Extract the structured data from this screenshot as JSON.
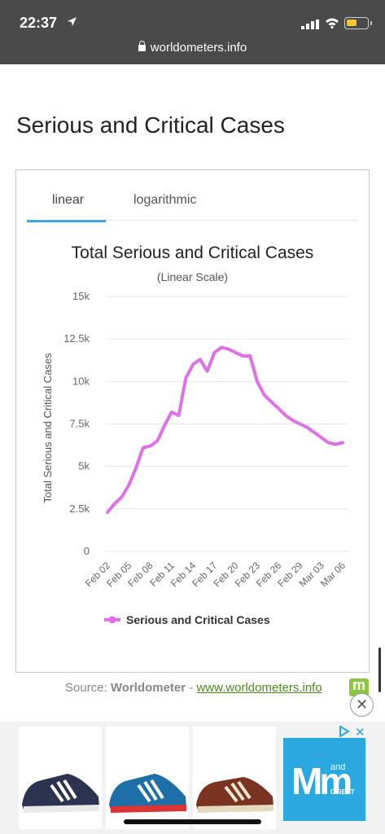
{
  "status_bar": {
    "time": "22:37",
    "url": "worldometers.info"
  },
  "section_title": "Serious and Critical Cases",
  "tabs": [
    {
      "label": "linear",
      "active": true
    },
    {
      "label": "logarithmic",
      "active": false
    }
  ],
  "chart_data": {
    "type": "line",
    "title": "Total Serious and Critical Cases",
    "subtitle": "(Linear Scale)",
    "ylabel": "Total Serious and Critical Cases",
    "xlabel": "",
    "ylim": [
      0,
      15000
    ],
    "y_ticks": [
      0,
      2500,
      5000,
      7500,
      10000,
      12500,
      15000
    ],
    "y_tick_labels": [
      "0",
      "2.5k",
      "5k",
      "7.5k",
      "10k",
      "12.5k",
      "15k"
    ],
    "x_tick_labels": [
      "Feb 02",
      "Feb 05",
      "Feb 08",
      "Feb 11",
      "Feb 14",
      "Feb 17",
      "Feb 20",
      "Feb 23",
      "Feb 26",
      "Feb 29",
      "Mar 03",
      "Mar 06"
    ],
    "color": "#e070e8",
    "legend_position": "bottom",
    "series": [
      {
        "name": "Serious and Critical Cases",
        "x": [
          "Feb 02",
          "Feb 03",
          "Feb 04",
          "Feb 05",
          "Feb 06",
          "Feb 07",
          "Feb 08",
          "Feb 09",
          "Feb 10",
          "Feb 11",
          "Feb 12",
          "Feb 13",
          "Feb 14",
          "Feb 15",
          "Feb 16",
          "Feb 17",
          "Feb 18",
          "Feb 19",
          "Feb 20",
          "Feb 21",
          "Feb 22",
          "Feb 23",
          "Feb 24",
          "Feb 25",
          "Feb 26",
          "Feb 27",
          "Feb 28",
          "Feb 29",
          "Mar 01",
          "Mar 02",
          "Mar 03",
          "Mar 04",
          "Mar 05",
          "Mar 06"
        ],
        "values": [
          2300,
          2800,
          3200,
          3900,
          4900,
          6100,
          6200,
          6500,
          7400,
          8200,
          8000,
          10200,
          11000,
          11300,
          10600,
          11700,
          12000,
          11900,
          11700,
          11500,
          11500,
          10000,
          9200,
          8800,
          8400,
          8000,
          7700,
          7500,
          7300,
          7000,
          6700,
          6400,
          6300,
          6400
        ]
      }
    ]
  },
  "source": {
    "prefix": "Source:",
    "name": "Worldometer",
    "separator": "-",
    "link": "www.worldometers.info"
  },
  "ad": {
    "brand_mm": "Mm",
    "brand_and": "and",
    "brand_direct": "DIRECT",
    "close": "✕"
  }
}
